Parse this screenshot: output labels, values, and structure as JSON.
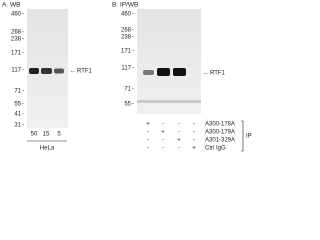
{
  "panels": [
    {
      "title": "A. WB",
      "markers": [
        460,
        268,
        238,
        171,
        117,
        71,
        55,
        41,
        31
      ],
      "target": "RTF1",
      "lanes": [
        50,
        15,
        5
      ],
      "sample": "HeLa"
    },
    {
      "title": "B. IP/WB",
      "markers": [
        460,
        268,
        238,
        171,
        117,
        71,
        55
      ],
      "target": "RTF1",
      "rows": [
        {
          "label": "A300-178A",
          "signs": [
            "+",
            "-",
            "-",
            "-"
          ]
        },
        {
          "label": "A300-179A",
          "signs": [
            "-",
            "+",
            "-",
            "-"
          ]
        },
        {
          "label": "A301-329A",
          "signs": [
            "-",
            "-",
            "+",
            "-"
          ]
        },
        {
          "label": "Ctrl IgG",
          "signs": [
            "-",
            "-",
            "-",
            "+"
          ]
        }
      ],
      "group": "IP"
    }
  ]
}
